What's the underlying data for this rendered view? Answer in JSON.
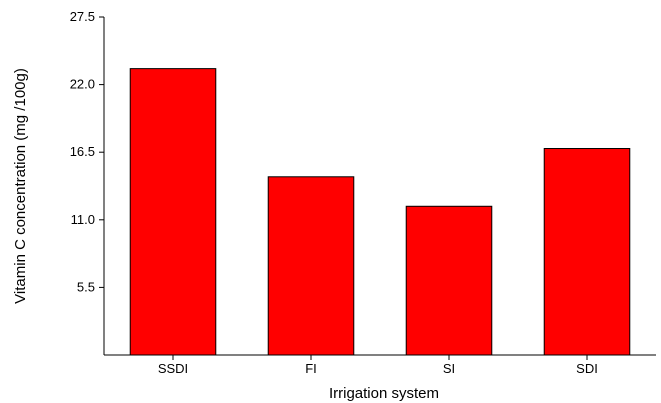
{
  "chart_data": {
    "type": "bar",
    "title": "",
    "xlabel": "Irrigation system",
    "ylabel": "Vitamin C concentration (mg /100g)",
    "categories": [
      "SSDI",
      "FI",
      "SI",
      "SDI"
    ],
    "values": [
      23.3,
      14.5,
      12.1,
      16.8
    ],
    "ylim": [
      0,
      27.5
    ],
    "yticks": [
      5.5,
      11.0,
      16.5,
      22.0,
      27.5
    ],
    "ytick_labels": [
      "5.5",
      "11.0",
      "16.5",
      "22.0",
      "27.5"
    ],
    "bar_color": "#ff0000",
    "bar_edge_color": "#000000",
    "grid": false,
    "legend": "none"
  }
}
